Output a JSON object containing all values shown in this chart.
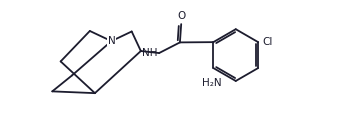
{
  "bg": "#ffffff",
  "lc": "#1c1c2e",
  "lw": 1.3,
  "fs": 7.5,
  "figsize": [
    3.37,
    1.33
  ],
  "dpi": 100,
  "xlim": [
    -0.1,
    10.3
  ],
  "ylim": [
    0.3,
    5.5
  ]
}
